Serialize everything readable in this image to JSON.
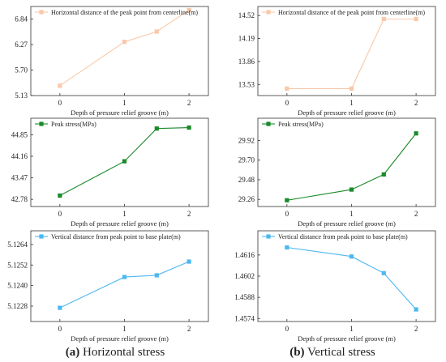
{
  "captions": [
    {
      "letter": "(a)",
      "text": " Horizontal stress"
    },
    {
      "letter": "(b)",
      "text": " Vertical stress"
    }
  ],
  "chart_data": [
    {
      "type": "line",
      "title": "",
      "xlabel": "Depth of pressure relief groove (m)",
      "ylabel": "",
      "x_ticks": [
        "0",
        "1",
        "2"
      ],
      "y_ticks": [
        "5.13",
        "5.70",
        "6.27",
        "6.84"
      ],
      "xlim": [
        -0.45,
        2.3
      ],
      "ylim": [
        5.13,
        7.12
      ],
      "legend_position": "top-left",
      "color": "#f8c8a8",
      "marker": "square",
      "series": [
        {
          "name": "Horizontal distance of the peak point from centerline(m)",
          "x": [
            0,
            1,
            1.5,
            2
          ],
          "y": [
            5.35,
            6.33,
            6.56,
            7.04
          ]
        }
      ]
    },
    {
      "type": "line",
      "title": "",
      "xlabel": "Depth of pressure relief groove (m)",
      "ylabel": "",
      "x_ticks": [
        "0",
        "1",
        "2"
      ],
      "y_ticks": [
        "13.53",
        "13.86",
        "14.19",
        "14.52"
      ],
      "xlim": [
        -0.45,
        2.3
      ],
      "ylim": [
        13.37,
        14.65
      ],
      "legend_position": "top-left",
      "color": "#f8c8a8",
      "marker": "square",
      "series": [
        {
          "name": "Horizontal distance of the peak point from centerline(m)",
          "x": [
            0,
            1,
            1.5,
            2
          ],
          "y": [
            13.47,
            13.47,
            14.47,
            14.47
          ]
        }
      ]
    },
    {
      "type": "line",
      "title": "",
      "xlabel": "Depth of pressure relief groove (m)",
      "ylabel": "",
      "x_ticks": [
        "0",
        "1",
        "2"
      ],
      "y_ticks": [
        "42.78",
        "43.47",
        "44.16",
        "44.85"
      ],
      "xlim": [
        -0.45,
        2.3
      ],
      "ylim": [
        42.55,
        45.38
      ],
      "legend_position": "top-left",
      "color": "#1a8a2a",
      "marker": "square",
      "series": [
        {
          "name": "Peak stress(MPa)",
          "x": [
            0,
            1,
            1.5,
            2
          ],
          "y": [
            42.9,
            44.0,
            45.05,
            45.08
          ]
        }
      ]
    },
    {
      "type": "line",
      "title": "",
      "xlabel": "Depth of pressure relief groove (m)",
      "ylabel": "",
      "x_ticks": [
        "0",
        "1",
        "2"
      ],
      "y_ticks": [
        "29.26",
        "29.48",
        "29.70",
        "29.92"
      ],
      "xlim": [
        -0.45,
        2.3
      ],
      "ylim": [
        29.18,
        30.17
      ],
      "legend_position": "top-left",
      "color": "#1a8a2a",
      "marker": "square",
      "series": [
        {
          "name": "Peak stress(MPa)",
          "x": [
            0,
            1,
            1.5,
            2
          ],
          "y": [
            29.25,
            29.37,
            29.54,
            30.0
          ]
        }
      ]
    },
    {
      "type": "line",
      "title": "",
      "xlabel": "Depth of pressure relief groove (m)",
      "ylabel": "",
      "x_ticks": [
        "0",
        "1",
        "2"
      ],
      "y_ticks": [
        "5.1228",
        "5.1240",
        "5.1252",
        "5.1264"
      ],
      "xlim": [
        -0.45,
        2.3
      ],
      "ylim": [
        5.1219,
        5.1272
      ],
      "legend_position": "top-left",
      "color": "#4db8f0",
      "marker": "square",
      "series": [
        {
          "name": "Vertical distance from peak point to base plate(m)",
          "x": [
            0,
            1,
            1.5,
            2
          ],
          "y": [
            5.1227,
            5.1245,
            5.1246,
            5.1254
          ]
        }
      ]
    },
    {
      "type": "line",
      "title": "",
      "xlabel": "Depth of pressure relief groove (m)",
      "ylabel": "",
      "x_ticks": [
        "0",
        "1",
        "2"
      ],
      "y_ticks": [
        "1.4574",
        "1.4588",
        "1.4602",
        "1.4616"
      ],
      "xlim": [
        -0.45,
        2.3
      ],
      "ylim": [
        1.4572,
        1.4632
      ],
      "legend_position": "top-left",
      "color": "#4db8f0",
      "marker": "square",
      "series": [
        {
          "name": "Vertical distance from peak point to base plate(m)",
          "x": [
            0,
            1,
            1.5,
            2
          ],
          "y": [
            1.4621,
            1.4615,
            1.4604,
            1.458
          ]
        }
      ]
    }
  ]
}
